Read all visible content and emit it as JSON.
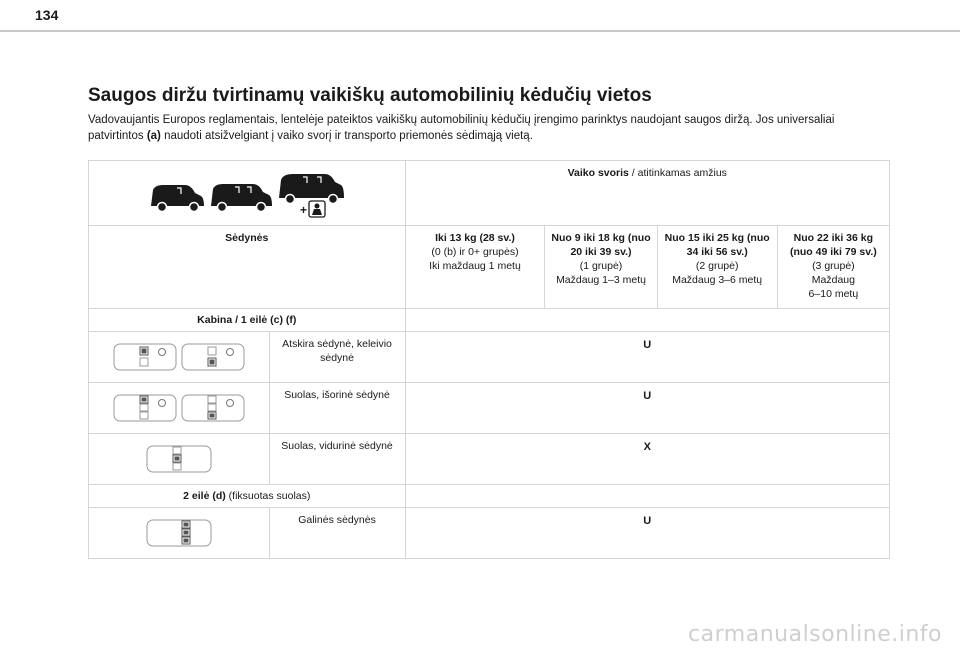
{
  "page_number": "134",
  "title": "Saugos diržu tvirtinamų vaikiškų automobilinių kėdučių vietos",
  "intro": {
    "part1": "Vadovaujantis Europos reglamentais, lentelėje pateiktos vaikiškų automobilinių kėdučių įrengimo parinktys naudojant saugos diržą. Jos universaliai patvirtintos ",
    "bold": "(a)",
    "part2": " naudoti atsižvelgiant į vaiko svorį ir transporto priemonės sėdimąją vietą."
  },
  "table": {
    "header": {
      "weight_bold": "Vaiko svoris",
      "weight_rest": " / atitinkamas amžius"
    },
    "seats_label": "Sėdynės",
    "groups": [
      {
        "weight": "Iki 13 kg (28 sv.)",
        "group": "(0 (b) ir 0+ grupės)",
        "age": "Iki maždaug 1 metų"
      },
      {
        "weight": "Nuo 9 iki 18 kg (nuo 20 iki 39 sv.)",
        "group": "(1 grupė)",
        "age": "Maždaug 1–3 metų"
      },
      {
        "weight": "Nuo 15 iki 25 kg (nuo 34 iki 56 sv.)",
        "group": "(2 grupė)",
        "age": "Maždaug 3–6 metų"
      },
      {
        "weight": "Nuo 22 iki 36 kg (nuo 49 iki 79 sv.)",
        "group": "(3 grupė)",
        "age": "Maždaug",
        "age2": "6–10 metų"
      }
    ],
    "section1": "Kabina / 1 eilė (c) (f)",
    "rows1": [
      {
        "label": "Atskira sėdynė, keleivio sėdynė",
        "mark": "U"
      },
      {
        "label": "Suolas, išorinė sėdynė",
        "mark": "U"
      },
      {
        "label": "Suolas, vidurinė sėdynė",
        "mark": "X"
      }
    ],
    "section2_bold": "2 eilė (d)",
    "section2_rest": " (fiksuotas suolas)",
    "rows2": [
      {
        "label": "Galinės sėdynės",
        "mark": "U"
      }
    ]
  },
  "watermark": "carmanualsonline.info",
  "icons": [
    "van-short-icon",
    "van-medium-icon",
    "van-long-icon",
    "child-seat-icon",
    "cabin-seat-diagram-icon",
    "rear-bench-diagram-icon"
  ]
}
